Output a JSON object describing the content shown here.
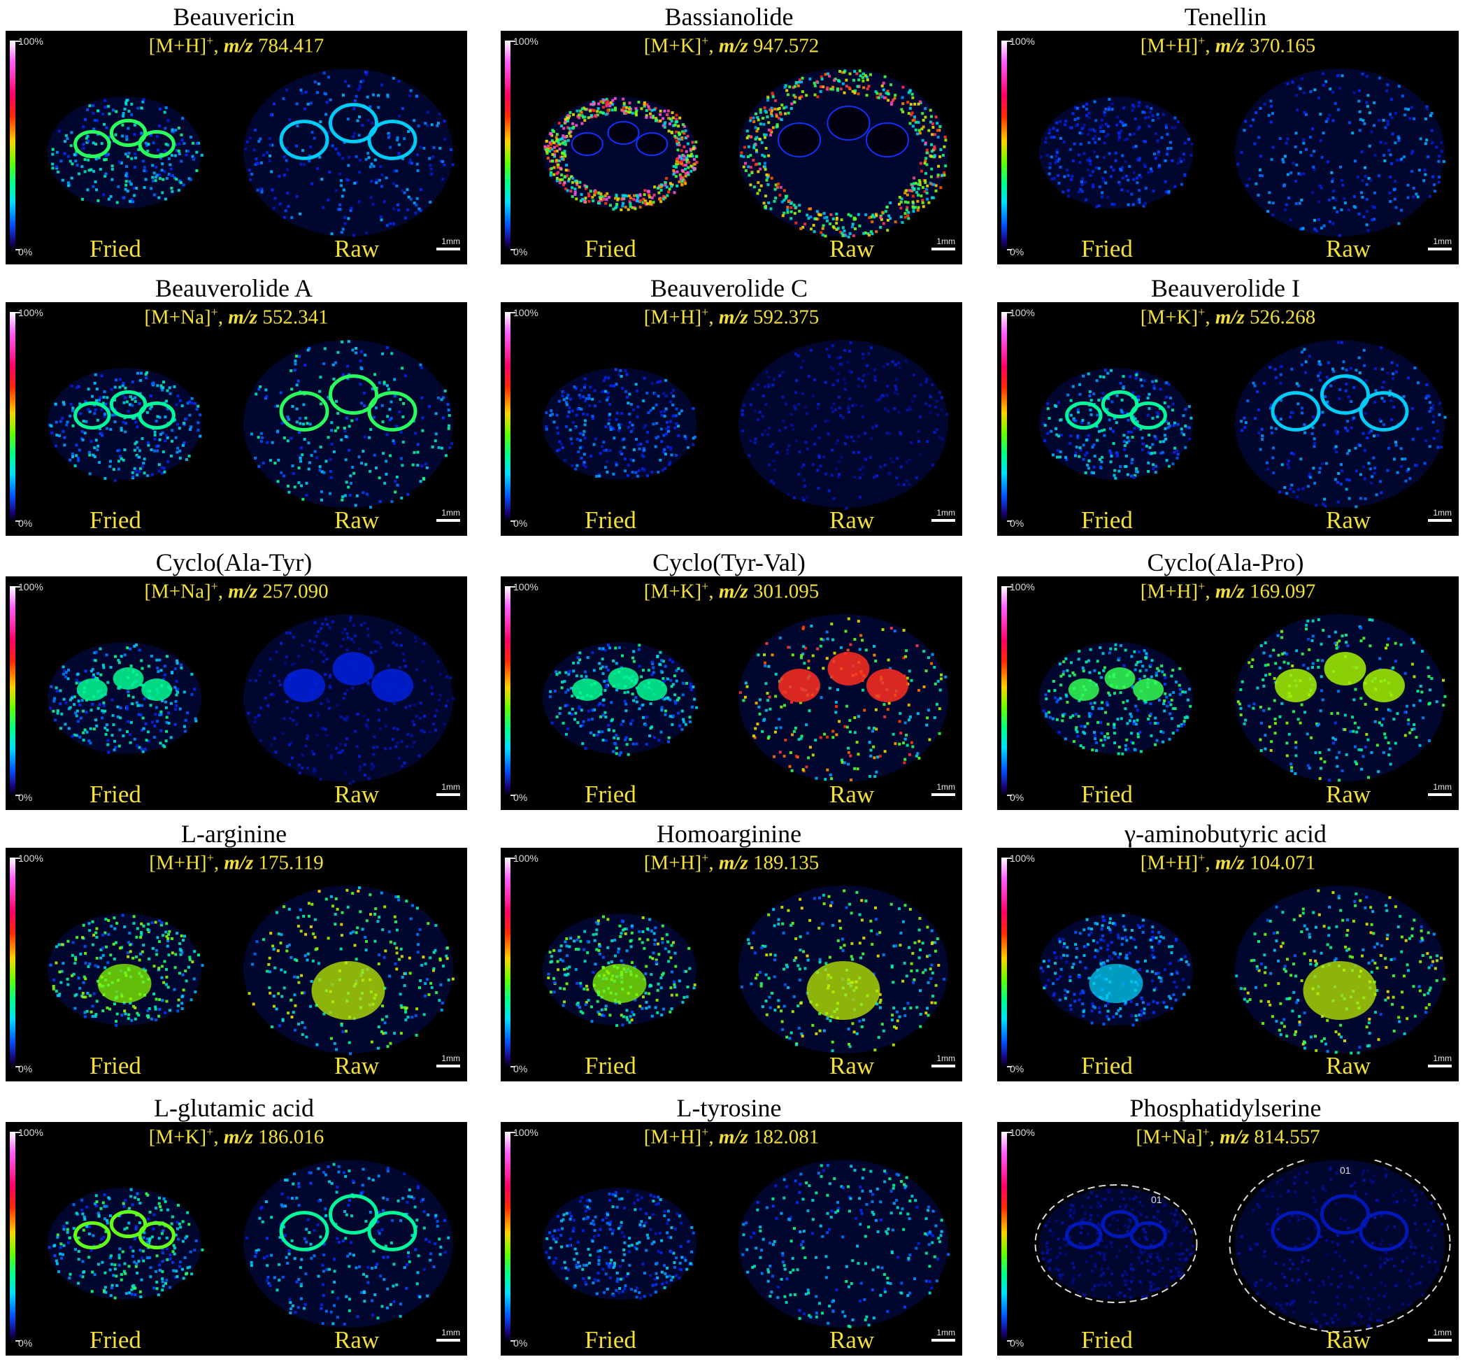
{
  "figure": {
    "colorbar": {
      "max_label": "100%",
      "min_label": "0%"
    },
    "scale_label": "1mm",
    "sample_labels": {
      "fried": "Fried",
      "raw": "Raw"
    },
    "panels": [
      {
        "title": "Beauvericin",
        "adduct": "[M+H]",
        "charge": "+",
        "mz_label": "m/z",
        "mz_value": "784.417",
        "level_fried": 0.45,
        "level_raw": 0.3,
        "pattern": "rings"
      },
      {
        "title": "Bassianolide",
        "adduct": "[M+K]",
        "charge": "+",
        "mz_label": "m/z",
        "mz_value": "947.572",
        "level_fried": 0.95,
        "level_raw": 0.85,
        "pattern": "outer"
      },
      {
        "title": "Tenellin",
        "adduct": "[M+H]",
        "charge": "+",
        "mz_label": "m/z",
        "mz_value": "370.165",
        "level_fried": 0.25,
        "level_raw": 0.3,
        "pattern": "sparse"
      },
      {
        "title": "Beauverolide A",
        "adduct": "[M+Na]",
        "charge": "+",
        "mz_label": "m/z",
        "mz_value": "552.341",
        "level_fried": 0.4,
        "level_raw": 0.45,
        "pattern": "mixed"
      },
      {
        "title": "Beauverolide C",
        "adduct": "[M+H]",
        "charge": "+",
        "mz_label": "m/z",
        "mz_value": "592.375",
        "level_fried": 0.3,
        "level_raw": 0.15,
        "pattern": "sparse"
      },
      {
        "title": "Beauverolide I",
        "adduct": "[M+K]",
        "charge": "+",
        "mz_label": "m/z",
        "mz_value": "526.268",
        "level_fried": 0.4,
        "level_raw": 0.3,
        "pattern": "rings"
      },
      {
        "title": "Cyclo(Ala-Tyr)",
        "adduct": "[M+Na]",
        "charge": "+",
        "mz_label": "m/z",
        "mz_value": " 257.090",
        "level_fried": 0.45,
        "level_raw": 0.15,
        "pattern": "blobs"
      },
      {
        "title": "Cyclo(Tyr-Val)",
        "adduct": "[M+K]",
        "charge": "+",
        "mz_label": "m/z",
        "mz_value": "301.095",
        "level_fried": 0.45,
        "level_raw": 0.8,
        "pattern": "blobs"
      },
      {
        "title": "Cyclo(Ala-Pro)",
        "adduct": "[M+H]",
        "charge": "+",
        "mz_label": "m/z",
        "mz_value": "169.097",
        "level_fried": 0.5,
        "level_raw": 0.6,
        "pattern": "blobs"
      },
      {
        "title": "L-arginine",
        "adduct": "[M+H]",
        "charge": "+",
        "mz_label": "m/z",
        "mz_value": "175.119",
        "level_fried": 0.6,
        "level_raw": 0.65,
        "pattern": "center"
      },
      {
        "title": "Homoarginine",
        "adduct": "[M+H]",
        "charge": "+",
        "mz_label": "m/z",
        "mz_value": "189.135",
        "level_fried": 0.6,
        "level_raw": 0.65,
        "pattern": "center"
      },
      {
        "title": "γ-aminobutyric acid",
        "adduct": "[M+H]",
        "charge": "+",
        "mz_label": "m/z",
        "mz_value": "104.071",
        "level_fried": 0.35,
        "level_raw": 0.65,
        "pattern": "center"
      },
      {
        "title": "L-glutamic acid",
        "adduct": "[M+K]",
        "charge": "+",
        "mz_label": "m/z",
        "mz_value": "186.016",
        "level_fried": 0.5,
        "level_raw": 0.4,
        "pattern": "rings"
      },
      {
        "title": "L-tyrosine",
        "adduct": "[M+H]",
        "charge": "+",
        "mz_label": "m/z",
        "mz_value": "182.081",
        "level_fried": 0.35,
        "level_raw": 0.45,
        "pattern": "sparse"
      },
      {
        "title": "Phosphatidylserine",
        "adduct": "[M+Na]",
        "charge": "+",
        "mz_label": "m/z",
        "mz_value": "814.557",
        "level_fried": 0.1,
        "level_raw": 0.1,
        "pattern": "outline",
        "roi_label": "01"
      }
    ]
  }
}
